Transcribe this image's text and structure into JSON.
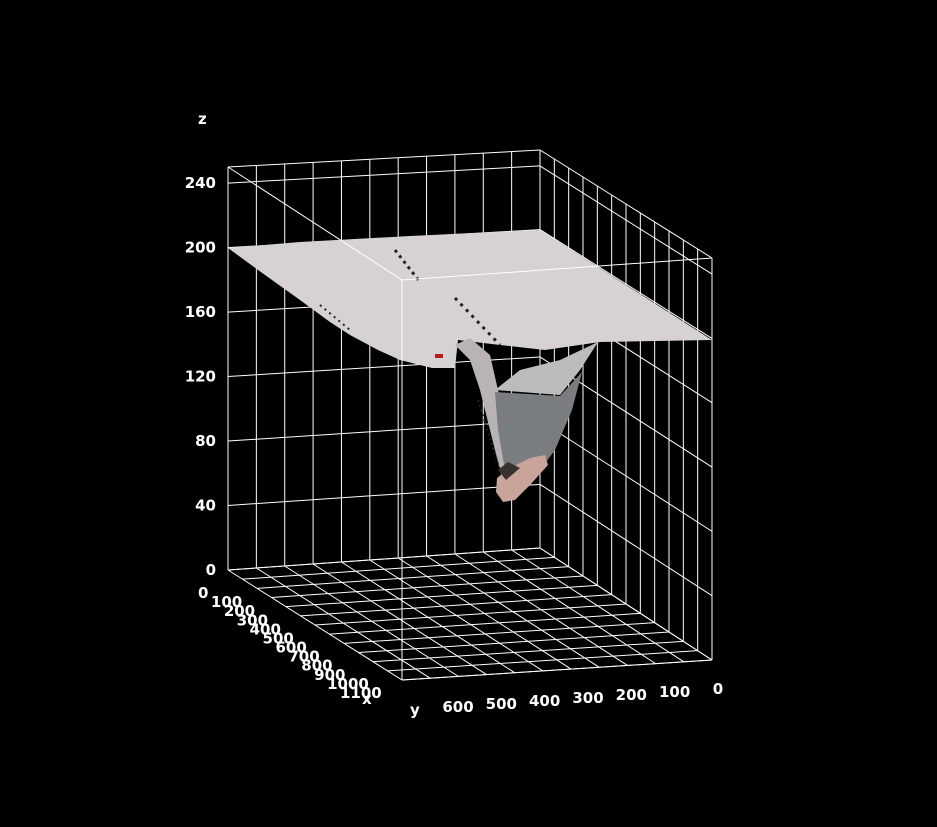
{
  "chart_data": {
    "type": "surface",
    "xlabel": "x",
    "ylabel": "y",
    "zlabel": "z",
    "x_ticks": [
      "0",
      "100",
      "200",
      "300",
      "400",
      "500",
      "600",
      "700",
      "800",
      "900",
      "1000",
      "1100"
    ],
    "y_ticks": [
      "600",
      "500",
      "400",
      "300",
      "200",
      "100",
      "0"
    ],
    "z_ticks": [
      "0",
      "40",
      "80",
      "120",
      "160",
      "200",
      "240"
    ],
    "xlim": [
      0,
      1100
    ],
    "ylim": [
      0,
      650
    ],
    "zlim": [
      0,
      250
    ],
    "grid": true,
    "surface": {
      "base_level": 200,
      "min_level": 40,
      "description_colors": {
        "plane": "#d6d2d3",
        "wall": "#7a7d7f",
        "bottom": "#c9a49a",
        "marker": "#c0181e"
      }
    }
  },
  "colors": {
    "background": "#000000",
    "grid": "#ffffff",
    "text": "#ffffff"
  }
}
